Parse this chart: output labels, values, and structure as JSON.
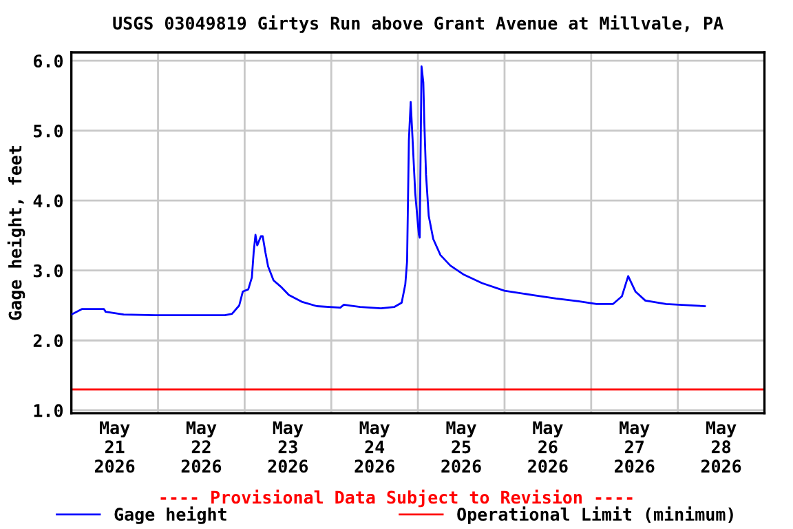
{
  "chart_data": {
    "type": "line",
    "title": "USGS 03049819 Girtys Run above Grant Avenue at Millvale, PA",
    "ylabel": "Gage height, feet",
    "annotations": [
      "---- Provisional Data Subject to Revision ----"
    ],
    "series": [
      {
        "name": "Gage height",
        "color": "#0000ff",
        "x": [
          "2026-05-21T00:00",
          "2026-05-21T03:00",
          "2026-05-21T09:00",
          "2026-05-21T09:30",
          "2026-05-21T14:30",
          "2026-05-21T23:15",
          "2026-05-22T18:30",
          "2026-05-22T20:30",
          "2026-05-22T22:30",
          "2026-05-22T23:30",
          "2026-05-23T01:00",
          "2026-05-23T02:00",
          "2026-05-23T02:30",
          "2026-05-23T03:00",
          "2026-05-23T03:30",
          "2026-05-23T04:30",
          "2026-05-23T05:00",
          "2026-05-23T05:45",
          "2026-05-23T06:30",
          "2026-05-23T08:00",
          "2026-05-23T10:00",
          "2026-05-23T12:15",
          "2026-05-23T16:00",
          "2026-05-23T20:00",
          "2026-05-24T02:30",
          "2026-05-24T03:30",
          "2026-05-24T08:00",
          "2026-05-24T13:45",
          "2026-05-24T17:30",
          "2026-05-24T19:30",
          "2026-05-24T20:30",
          "2026-05-24T21:00",
          "2026-05-24T21:30",
          "2026-05-24T22:00",
          "2026-05-24T22:30",
          "2026-05-24T23:15",
          "2026-05-25T00:15",
          "2026-05-25T00:30",
          "2026-05-25T01:00",
          "2026-05-25T01:30",
          "2026-05-25T01:45",
          "2026-05-25T02:15",
          "2026-05-25T03:00",
          "2026-05-25T04:15",
          "2026-05-25T06:15",
          "2026-05-25T09:00",
          "2026-05-25T12:45",
          "2026-05-25T17:45",
          "2026-05-26T00:00",
          "2026-05-26T07:45",
          "2026-05-26T14:15",
          "2026-05-26T20:30",
          "2026-05-27T01:30",
          "2026-05-27T06:00",
          "2026-05-27T08:30",
          "2026-05-27T10:15",
          "2026-05-27T12:15",
          "2026-05-27T15:00",
          "2026-05-27T20:45",
          "2026-05-28T07:30"
        ],
        "values": [
          2.37,
          2.45,
          2.45,
          2.41,
          2.37,
          2.36,
          2.36,
          2.38,
          2.5,
          2.7,
          2.73,
          2.9,
          3.26,
          3.51,
          3.36,
          3.49,
          3.49,
          3.26,
          3.06,
          2.86,
          2.77,
          2.65,
          2.55,
          2.49,
          2.47,
          2.51,
          2.48,
          2.46,
          2.48,
          2.54,
          2.8,
          3.13,
          4.86,
          5.41,
          4.9,
          4.11,
          3.52,
          3.47,
          5.92,
          5.69,
          5.16,
          4.37,
          3.78,
          3.45,
          3.22,
          3.07,
          2.94,
          2.82,
          2.71,
          2.65,
          2.6,
          2.56,
          2.52,
          2.52,
          2.63,
          2.92,
          2.7,
          2.57,
          2.52,
          2.49
        ]
      }
    ],
    "ref_lines": [
      {
        "axis": "y",
        "value": 1.3,
        "label": "Operational Limit (minimum)",
        "color": "#ff0000"
      }
    ],
    "xlim": [
      "2026-05-21T00:00",
      "2026-05-29T00:00"
    ],
    "xticks": [
      {
        "value": "2026-05-21T12:00",
        "label": "May\n21\n2026"
      },
      {
        "value": "2026-05-22T00:00",
        "label": null
      },
      {
        "value": "2026-05-22T12:00",
        "label": "May\n22\n2026"
      },
      {
        "value": "2026-05-23T00:00",
        "label": null
      },
      {
        "value": "2026-05-23T12:00",
        "label": "May\n23\n2026"
      },
      {
        "value": "2026-05-24T00:00",
        "label": null
      },
      {
        "value": "2026-05-24T12:00",
        "label": "May\n24\n2026"
      },
      {
        "value": "2026-05-25T00:00",
        "label": null
      },
      {
        "value": "2026-05-25T12:00",
        "label": "May\n25\n2026"
      },
      {
        "value": "2026-05-26T00:00",
        "label": null
      },
      {
        "value": "2026-05-26T12:00",
        "label": "May\n26\n2026"
      },
      {
        "value": "2026-05-27T00:00",
        "label": null
      },
      {
        "value": "2026-05-27T12:00",
        "label": "May\n27\n2026"
      },
      {
        "value": "2026-05-28T00:00",
        "label": null
      },
      {
        "value": "2026-05-28T12:00",
        "label": "May\n28\n2026"
      }
    ],
    "ylim": [
      0.96,
      6.12
    ],
    "yticks": [
      {
        "value": 1,
        "label": "1.0"
      },
      {
        "value": 2,
        "label": "2.0"
      },
      {
        "value": 3,
        "label": "3.0"
      },
      {
        "value": 4,
        "label": "4.0"
      },
      {
        "value": 5,
        "label": "5.0"
      },
      {
        "value": 6,
        "label": "6.0"
      }
    ],
    "grid": true,
    "legend": "bottom"
  }
}
